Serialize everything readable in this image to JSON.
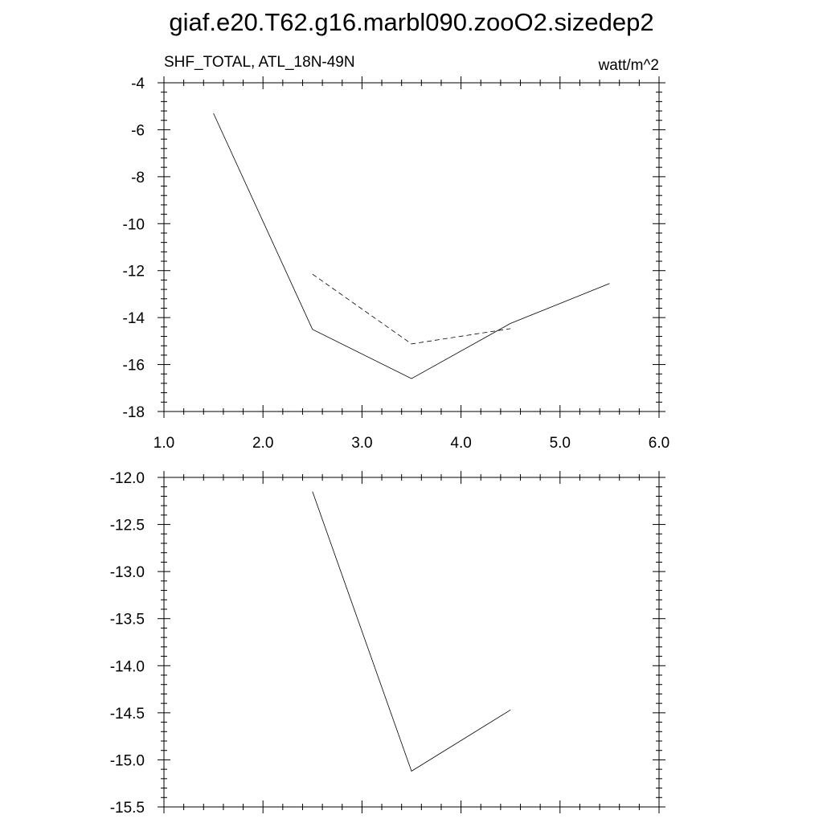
{
  "title": "giaf.e20.T62.g16.marbl090.zooO2.sizedep2",
  "chart_data": [
    {
      "type": "line",
      "subtitle_left": "SHF_TOTAL, ATL_18N-49N",
      "subtitle_right": "watt/m^2",
      "xlim": [
        1.0,
        6.0
      ],
      "ylim": [
        -18,
        -4
      ],
      "x_ticks": [
        1.0,
        2.0,
        3.0,
        4.0,
        5.0,
        6.0
      ],
      "x_tick_labels": [
        "1.0",
        "2.0",
        "3.0",
        "4.0",
        "5.0",
        "6.0"
      ],
      "y_ticks": [
        -4,
        -6,
        -8,
        -10,
        -12,
        -14,
        -16,
        -18
      ],
      "y_tick_labels": [
        "-4",
        "-6",
        "-8",
        "-10",
        "-12",
        "-14",
        "-16",
        "-18"
      ],
      "grid": false,
      "series": [
        {
          "style": "solid",
          "x": [
            1.5,
            2.5,
            3.5,
            4.5,
            5.5
          ],
          "y": [
            -5.3,
            -14.5,
            -16.6,
            -14.25,
            -12.55
          ]
        },
        {
          "style": "dashed",
          "x": [
            2.5,
            3.5,
            4.5
          ],
          "y": [
            -12.15,
            -15.12,
            -14.47
          ]
        }
      ]
    },
    {
      "type": "line",
      "xlim": [
        1.0,
        6.0
      ],
      "ylim": [
        -15.5,
        -12.0
      ],
      "x_ticks": [
        1.0,
        2.0,
        3.0,
        4.0,
        5.0,
        6.0
      ],
      "y_ticks": [
        -12.0,
        -12.5,
        -13.0,
        -13.5,
        -14.0,
        -14.5,
        -15.0,
        -15.5
      ],
      "y_tick_labels": [
        "-12.0",
        "-12.5",
        "-13.0",
        "-13.5",
        "-14.0",
        "-14.5",
        "-15.0",
        "-15.5"
      ],
      "grid": false,
      "series": [
        {
          "style": "solid",
          "x": [
            2.5,
            3.5,
            4.5
          ],
          "y": [
            -12.15,
            -15.12,
            -14.47
          ]
        }
      ]
    }
  ]
}
